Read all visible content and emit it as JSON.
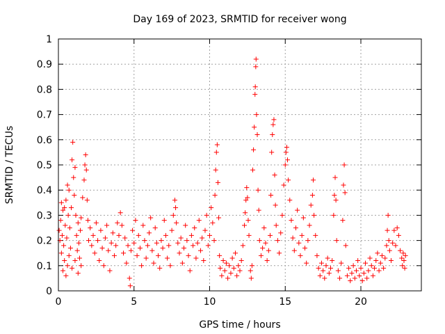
{
  "chart_data": {
    "type": "scatter",
    "title": "Day 169 of 2023, SRMTID for receiver wong",
    "xlabel": "GPS time / hours",
    "ylabel": "SRMTID / TECUs",
    "xlim": [
      0,
      24
    ],
    "ylim": [
      0,
      1
    ],
    "xticks": [
      0,
      5,
      10,
      15,
      20
    ],
    "xtick_labels": [
      "0",
      "5",
      "10",
      "15",
      "20"
    ],
    "yticks": [
      0,
      0.1,
      0.2,
      0.3,
      0.4,
      0.5,
      0.6,
      0.7,
      0.8,
      0.9,
      1
    ],
    "ytick_labels": [
      "0",
      "0.1",
      "0.2",
      "0.3",
      "0.4",
      "0.5",
      "0.6",
      "0.7",
      "0.8",
      "0.9",
      "1"
    ],
    "grid": true,
    "marker": "+",
    "series": [
      {
        "name": "SRMTID",
        "color": "#ff0000",
        "points": [
          [
            0.05,
            0.24
          ],
          [
            0.1,
            0.2
          ],
          [
            0.15,
            0.28
          ],
          [
            0.2,
            0.15
          ],
          [
            0.25,
            0.22
          ],
          [
            0.3,
            0.32
          ],
          [
            0.35,
            0.18
          ],
          [
            0.4,
            0.12
          ],
          [
            0.45,
            0.26
          ],
          [
            0.5,
            0.36
          ],
          [
            0.55,
            0.21
          ],
          [
            0.6,
            0.1
          ],
          [
            0.65,
            0.3
          ],
          [
            0.7,
            0.4
          ],
          [
            0.75,
            0.25
          ],
          [
            0.8,
            0.17
          ],
          [
            0.85,
            0.33
          ],
          [
            0.9,
            0.52
          ],
          [
            0.95,
            0.59
          ],
          [
            1.0,
            0.45
          ],
          [
            1.05,
            0.38
          ],
          [
            1.1,
            0.49
          ],
          [
            1.15,
            0.3
          ],
          [
            1.2,
            0.22
          ],
          [
            1.25,
            0.16
          ],
          [
            1.3,
            0.27
          ],
          [
            1.35,
            0.19
          ],
          [
            1.4,
            0.13
          ],
          [
            1.45,
            0.24
          ],
          [
            1.5,
            0.29
          ],
          [
            1.6,
            0.37
          ],
          [
            1.7,
            0.44
          ],
          [
            1.75,
            0.5
          ],
          [
            1.8,
            0.54
          ],
          [
            1.85,
            0.48
          ],
          [
            1.9,
            0.36
          ],
          [
            1.95,
            0.28
          ],
          [
            2.0,
            0.2
          ],
          [
            2.1,
            0.25
          ],
          [
            2.2,
            0.18
          ],
          [
            0.3,
            0.08
          ],
          [
            0.5,
            0.06
          ],
          [
            0.7,
            0.14
          ],
          [
            0.9,
            0.09
          ],
          [
            1.1,
            0.12
          ],
          [
            1.3,
            0.07
          ],
          [
            1.5,
            0.1
          ],
          [
            0.2,
            0.35
          ],
          [
            0.4,
            0.33
          ],
          [
            0.6,
            0.42
          ],
          [
            2.3,
            0.22
          ],
          [
            2.4,
            0.15
          ],
          [
            2.5,
            0.27
          ],
          [
            2.6,
            0.2
          ],
          [
            2.7,
            0.12
          ],
          [
            2.8,
            0.24
          ],
          [
            2.9,
            0.17
          ],
          [
            3.0,
            0.1
          ],
          [
            3.1,
            0.21
          ],
          [
            3.2,
            0.26
          ],
          [
            3.3,
            0.16
          ],
          [
            3.4,
            0.08
          ],
          [
            3.5,
            0.19
          ],
          [
            3.6,
            0.23
          ],
          [
            3.7,
            0.14
          ],
          [
            3.8,
            0.18
          ],
          [
            3.9,
            0.27
          ],
          [
            4.0,
            0.22
          ],
          [
            4.1,
            0.31
          ],
          [
            4.2,
            0.26
          ],
          [
            4.3,
            0.15
          ],
          [
            4.4,
            0.21
          ],
          [
            4.5,
            0.11
          ],
          [
            4.6,
            0.18
          ],
          [
            4.7,
            0.05
          ],
          [
            4.75,
            0.02
          ],
          [
            4.8,
            0.16
          ],
          [
            4.9,
            0.24
          ],
          [
            5.0,
            0.19
          ],
          [
            5.1,
            0.28
          ],
          [
            5.2,
            0.14
          ],
          [
            5.3,
            0.22
          ],
          [
            5.4,
            0.17
          ],
          [
            5.5,
            0.1
          ],
          [
            5.6,
            0.26
          ],
          [
            5.7,
            0.2
          ],
          [
            5.8,
            0.13
          ],
          [
            5.9,
            0.18
          ],
          [
            6.0,
            0.23
          ],
          [
            6.1,
            0.29
          ],
          [
            6.2,
            0.16
          ],
          [
            6.3,
            0.11
          ],
          [
            6.4,
            0.25
          ],
          [
            6.5,
            0.19
          ],
          [
            6.6,
            0.14
          ],
          [
            6.7,
            0.09
          ],
          [
            6.8,
            0.2
          ],
          [
            6.9,
            0.17
          ],
          [
            7.0,
            0.28
          ],
          [
            7.1,
            0.22
          ],
          [
            7.2,
            0.13
          ],
          [
            7.3,
            0.18
          ],
          [
            7.4,
            0.1
          ],
          [
            7.5,
            0.24
          ],
          [
            7.6,
            0.3
          ],
          [
            7.7,
            0.36
          ],
          [
            7.75,
            0.33
          ],
          [
            7.8,
            0.27
          ],
          [
            7.9,
            0.19
          ],
          [
            8.0,
            0.15
          ],
          [
            8.1,
            0.21
          ],
          [
            8.2,
            0.11
          ],
          [
            8.3,
            0.17
          ],
          [
            8.4,
            0.26
          ],
          [
            8.5,
            0.2
          ],
          [
            8.6,
            0.14
          ],
          [
            8.7,
            0.08
          ],
          [
            8.8,
            0.22
          ],
          [
            8.9,
            0.18
          ],
          [
            9.0,
            0.25
          ],
          [
            9.1,
            0.13
          ],
          [
            9.2,
            0.19
          ],
          [
            9.3,
            0.28
          ],
          [
            9.4,
            0.16
          ],
          [
            9.5,
            0.21
          ],
          [
            9.6,
            0.12
          ],
          [
            9.7,
            0.24
          ],
          [
            9.8,
            0.3
          ],
          [
            9.9,
            0.18
          ],
          [
            10.0,
            0.22
          ],
          [
            10.1,
            0.33
          ],
          [
            10.2,
            0.27
          ],
          [
            10.3,
            0.2
          ],
          [
            10.35,
            0.38
          ],
          [
            10.4,
            0.48
          ],
          [
            10.45,
            0.55
          ],
          [
            10.5,
            0.58
          ],
          [
            10.55,
            0.43
          ],
          [
            10.6,
            0.29
          ],
          [
            10.65,
            0.14
          ],
          [
            10.7,
            0.09
          ],
          [
            10.8,
            0.06
          ],
          [
            10.9,
            0.12
          ],
          [
            11.0,
            0.08
          ],
          [
            11.1,
            0.11
          ],
          [
            11.2,
            0.05
          ],
          [
            11.3,
            0.1
          ],
          [
            11.4,
            0.07
          ],
          [
            11.5,
            0.13
          ],
          [
            11.6,
            0.09
          ],
          [
            11.7,
            0.15
          ],
          [
            11.8,
            0.06
          ],
          [
            11.9,
            0.1
          ],
          [
            12.0,
            0.08
          ],
          [
            12.1,
            0.12
          ],
          [
            12.2,
            0.18
          ],
          [
            12.3,
            0.26
          ],
          [
            12.35,
            0.31
          ],
          [
            12.4,
            0.36
          ],
          [
            12.45,
            0.41
          ],
          [
            12.5,
            0.37
          ],
          [
            12.55,
            0.28
          ],
          [
            12.6,
            0.22
          ],
          [
            12.7,
            0.08
          ],
          [
            12.75,
            0.05
          ],
          [
            12.8,
            0.1
          ],
          [
            12.85,
            0.48
          ],
          [
            12.9,
            0.56
          ],
          [
            12.95,
            0.65
          ],
          [
            13.0,
            0.78
          ],
          [
            13.02,
            0.81
          ],
          [
            13.05,
            0.89
          ],
          [
            13.07,
            0.92
          ],
          [
            13.1,
            0.7
          ],
          [
            13.15,
            0.62
          ],
          [
            13.2,
            0.4
          ],
          [
            13.25,
            0.32
          ],
          [
            13.3,
            0.2
          ],
          [
            13.4,
            0.14
          ],
          [
            13.5,
            0.17
          ],
          [
            13.6,
            0.25
          ],
          [
            13.7,
            0.19
          ],
          [
            13.8,
            0.12
          ],
          [
            13.9,
            0.16
          ],
          [
            14.0,
            0.22
          ],
          [
            14.05,
            0.38
          ],
          [
            14.1,
            0.55
          ],
          [
            14.15,
            0.62
          ],
          [
            14.2,
            0.66
          ],
          [
            14.25,
            0.68
          ],
          [
            14.3,
            0.46
          ],
          [
            14.35,
            0.34
          ],
          [
            14.4,
            0.26
          ],
          [
            14.5,
            0.2
          ],
          [
            14.6,
            0.15
          ],
          [
            14.7,
            0.23
          ],
          [
            14.8,
            0.3
          ],
          [
            14.9,
            0.42
          ],
          [
            15.0,
            0.5
          ],
          [
            15.05,
            0.55
          ],
          [
            15.1,
            0.57
          ],
          [
            15.15,
            0.52
          ],
          [
            15.2,
            0.44
          ],
          [
            15.3,
            0.36
          ],
          [
            15.4,
            0.28
          ],
          [
            15.5,
            0.21
          ],
          [
            15.6,
            0.16
          ],
          [
            15.7,
            0.25
          ],
          [
            15.8,
            0.32
          ],
          [
            15.9,
            0.19
          ],
          [
            16.0,
            0.14
          ],
          [
            16.1,
            0.22
          ],
          [
            16.2,
            0.29
          ],
          [
            16.3,
            0.17
          ],
          [
            16.4,
            0.11
          ],
          [
            16.5,
            0.2
          ],
          [
            16.6,
            0.26
          ],
          [
            16.7,
            0.34
          ],
          [
            16.8,
            0.38
          ],
          [
            16.85,
            0.44
          ],
          [
            16.9,
            0.3
          ],
          [
            17.0,
            0.22
          ],
          [
            17.1,
            0.14
          ],
          [
            17.2,
            0.09
          ],
          [
            17.3,
            0.06
          ],
          [
            17.4,
            0.11
          ],
          [
            17.5,
            0.08
          ],
          [
            17.6,
            0.05
          ],
          [
            17.7,
            0.1
          ],
          [
            17.8,
            0.13
          ],
          [
            17.9,
            0.07
          ],
          [
            18.0,
            0.09
          ],
          [
            18.1,
            0.12
          ],
          [
            18.2,
            0.3
          ],
          [
            18.25,
            0.38
          ],
          [
            18.3,
            0.45
          ],
          [
            18.35,
            0.36
          ],
          [
            18.4,
            0.2
          ],
          [
            18.5,
            0.08
          ],
          [
            18.6,
            0.05
          ],
          [
            18.7,
            0.11
          ],
          [
            18.8,
            0.28
          ],
          [
            18.85,
            0.42
          ],
          [
            18.9,
            0.5
          ],
          [
            18.95,
            0.39
          ],
          [
            19.0,
            0.18
          ],
          [
            19.1,
            0.06
          ],
          [
            19.2,
            0.09
          ],
          [
            19.3,
            0.04
          ],
          [
            19.4,
            0.07
          ],
          [
            19.5,
            0.1
          ],
          [
            19.6,
            0.05
          ],
          [
            19.7,
            0.08
          ],
          [
            19.8,
            0.12
          ],
          [
            19.9,
            0.06
          ],
          [
            20.0,
            0.09
          ],
          [
            20.1,
            0.04
          ],
          [
            20.2,
            0.07
          ],
          [
            20.3,
            0.11
          ],
          [
            20.4,
            0.05
          ],
          [
            20.5,
            0.08
          ],
          [
            20.6,
            0.13
          ],
          [
            20.7,
            0.1
          ],
          [
            20.8,
            0.06
          ],
          [
            20.9,
            0.09
          ],
          [
            21.0,
            0.12
          ],
          [
            21.1,
            0.15
          ],
          [
            21.2,
            0.08
          ],
          [
            21.3,
            0.11
          ],
          [
            21.4,
            0.14
          ],
          [
            21.5,
            0.09
          ],
          [
            21.6,
            0.13
          ],
          [
            21.7,
            0.18
          ],
          [
            21.75,
            0.24
          ],
          [
            21.8,
            0.3
          ],
          [
            21.85,
            0.2
          ],
          [
            21.9,
            0.16
          ],
          [
            22.0,
            0.12
          ],
          [
            22.1,
            0.19
          ],
          [
            22.2,
            0.24
          ],
          [
            22.3,
            0.18
          ],
          [
            22.4,
            0.25
          ],
          [
            22.5,
            0.22
          ],
          [
            22.6,
            0.16
          ],
          [
            22.7,
            0.13
          ],
          [
            22.75,
            0.1
          ],
          [
            22.8,
            0.15
          ],
          [
            22.85,
            0.12
          ],
          [
            22.9,
            0.09
          ],
          [
            22.95,
            0.14
          ]
        ]
      }
    ]
  }
}
